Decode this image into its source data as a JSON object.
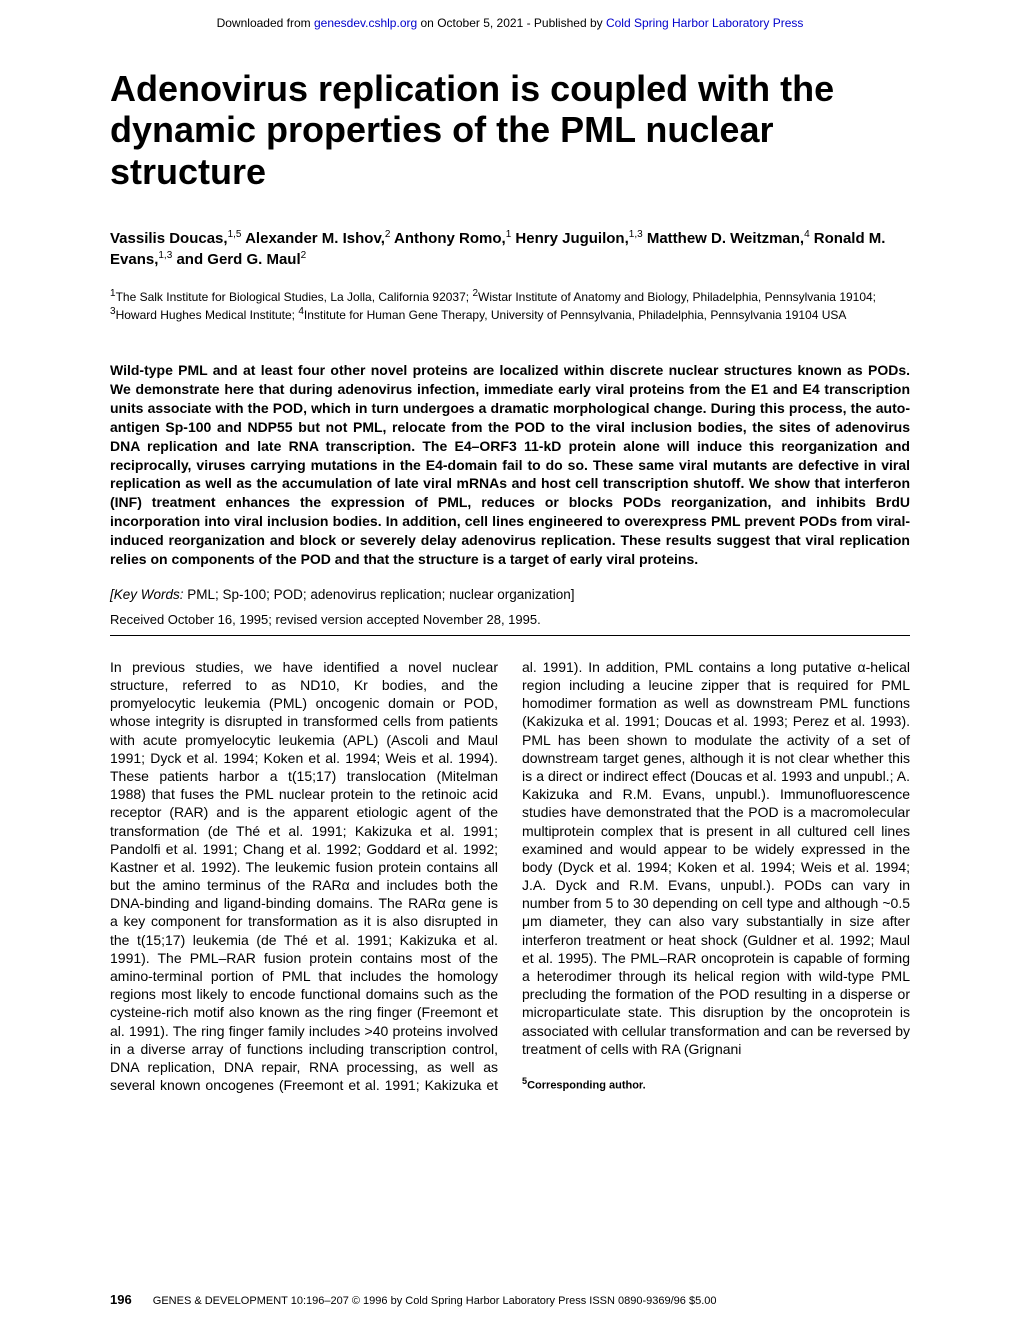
{
  "banner": {
    "prefix": "Downloaded from ",
    "link1_text": "genesdev.cshlp.org",
    "middle": " on October 5, 2021 - Published by ",
    "link2_text": "Cold Spring Harbor Laboratory Press"
  },
  "title": "Adenovirus replication is coupled with the dynamic properties of the PML nuclear structure",
  "authors_html": "Vassilis Doucas,<sup>1,5</sup> Alexander M. Ishov,<sup>2</sup> Anthony Romo,<sup>1</sup> Henry Juguilon,<sup>1,3</sup> Matthew D. Weitzman,<sup>4</sup> Ronald M. Evans,<sup>1,3</sup> and Gerd G. Maul<sup>2</sup>",
  "affiliations_html": "<sup>1</sup>The Salk Institute for Biological Studies, La Jolla, California 92037; <sup>2</sup>Wistar Institute of Anatomy and Biology, Philadelphia, Pennsylvania 19104; <sup>3</sup>Howard Hughes Medical Institute; <sup>4</sup>Institute for Human Gene Therapy, University of Pennsylvania, Philadelphia, Pennsylvania 19104 USA",
  "abstract": "Wild-type PML and at least four other novel proteins are localized within discrete nuclear structures known as PODs. We demonstrate here that during adenovirus infection, immediate early viral proteins from the E1 and E4 transcription units associate with the POD, which in turn undergoes a dramatic morphological change. During this process, the auto-antigen Sp-100 and NDP55 but not PML, relocate from the POD to the viral inclusion bodies, the sites of adenovirus DNA replication and late RNA transcription. The E4–ORF3 11-kD protein alone will induce this reorganization and reciprocally, viruses carrying mutations in the E4-domain fail to do so. These same viral mutants are defective in viral replication as well as the accumulation of late viral mRNAs and host cell transcription shutoff. We show that interferon (INF) treatment enhances the expression of PML, reduces or blocks PODs reorganization, and inhibits BrdU incorporation into viral inclusion bodies. In addition, cell lines engineered to overexpress PML prevent PODs from viral-induced reorganization and block or severely delay adenovirus replication. These results suggest that viral replication relies on components of the POD and that the structure is a target of early viral proteins.",
  "keywords": {
    "label": "[Key Words:",
    "text": " PML; Sp-100; POD; adenovirus replication; nuclear organization]"
  },
  "received": "Received October 16, 1995; revised version accepted November 28, 1995.",
  "body_text": "In previous studies, we have identified a novel nuclear structure, referred to as ND10, Kr bodies, and the promyelocytic leukemia (PML) oncogenic domain or POD, whose integrity is disrupted in transformed cells from patients with acute promyelocytic leukemia (APL) (Ascoli and Maul 1991; Dyck et al. 1994; Koken et al. 1994; Weis et al. 1994). These patients harbor a t(15;17) translocation (Mitelman 1988) that fuses the PML nuclear protein to the retinoic acid receptor (RAR) and is the apparent etiologic agent of the transformation (de Thé et al. 1991; Kakizuka et al. 1991; Pandolfi et al. 1991; Chang et al. 1992; Goddard et al. 1992; Kastner et al. 1992). The leukemic fusion protein contains all but the amino terminus of the RARα and includes both the DNA-binding and ligand-binding domains. The RARα gene is a key component for transformation as it is also disrupted in the t(15;17) leukemia (de Thé et al. 1991; Kakizuka et al. 1991). The PML–RAR fusion protein contains most of the amino-terminal portion of PML that includes the homology regions most likely to encode functional domains such as the cysteine-rich motif also known as the ring finger (Freemont et al. 1991). The ring finger family includes >40 proteins involved in a diverse array of functions including transcription control, DNA replication, DNA repair, RNA processing, as well as several known oncogenes (Freemont et al. 1991; Kakizuka et al. 1991). In addition, PML contains a long putative α-helical region including a leucine zipper that is required for PML homodimer formation as well as downstream PML functions (Kakizuka et al. 1991; Doucas et al. 1993; Perez et al. 1993). PML has been shown to modulate the activity of a set of downstream target genes, although it is not clear whether this is a direct or indirect effect (Doucas et al. 1993 and unpubl.; A. Kakizuka and R.M. Evans, unpubl.). Immunofluorescence studies have demonstrated that the POD is a macromolecular multiprotein complex that is present in all cultured cell lines examined and would appear to be widely expressed in the body (Dyck et al. 1994; Koken et al. 1994; Weis et al. 1994; J.A. Dyck and R.M. Evans, unpubl.). PODs can vary in number from 5 to 30 depending on cell type and although ~0.5 μm diameter, they can also vary substantially in size after interferon treatment or heat shock (Guldner et al. 1992; Maul et al. 1995). The PML–RAR oncoprotein is capable of forming a heterodimer through its helical region with wild-type PML precluding the formation of the POD resulting in a disperse or microparticulate state. This disruption by the oncoprotein is associated with cellular transformation and can be reversed by treatment of cells with RA (Grignani",
  "corresponding_html": "<sup>5</sup>Corresponding author.",
  "footer": {
    "pagenum": "196",
    "text": "GENES & DEVELOPMENT 10:196–207 © 1996 by Cold Spring Harbor Laboratory Press ISSN 0890-9369/96 $5.00"
  },
  "colors": {
    "background": "#ffffff",
    "text": "#000000",
    "link": "#0000cc"
  }
}
